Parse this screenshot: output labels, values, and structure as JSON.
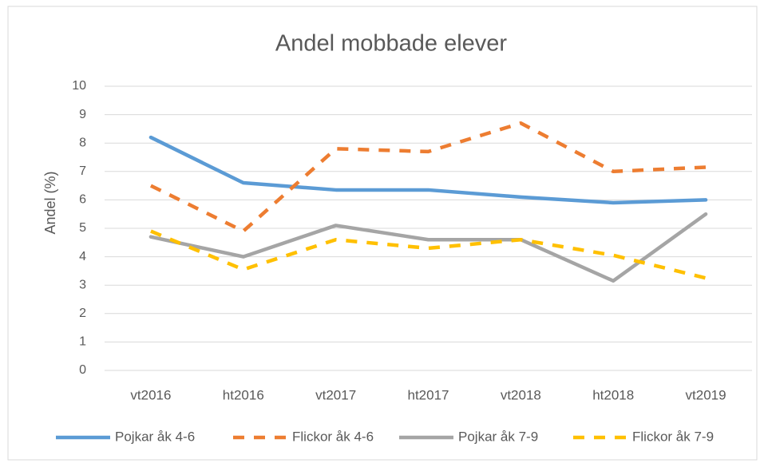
{
  "chart_data": {
    "type": "line",
    "title": "Andel mobbade elever",
    "y_label": "Andel (%)",
    "categories": [
      "vt2016",
      "ht2016",
      "vt2017",
      "ht2017",
      "vt2018",
      "ht2018",
      "vt2019"
    ],
    "series": [
      {
        "name": "Pojkar åk 4-6",
        "color": "#5b9bd5",
        "dashed": false,
        "values": [
          8.2,
          6.6,
          6.35,
          6.35,
          6.1,
          5.9,
          6.0
        ]
      },
      {
        "name": "Flickor åk 4-6",
        "color": "#ed7d31",
        "dashed": true,
        "values": [
          6.5,
          4.9,
          7.8,
          7.7,
          8.7,
          7.0,
          7.15
        ]
      },
      {
        "name": "Pojkar åk 7-9",
        "color": "#a5a5a5",
        "dashed": false,
        "values": [
          4.7,
          4.0,
          5.1,
          4.6,
          4.6,
          3.15,
          5.5
        ]
      },
      {
        "name": "Flickor åk 7-9",
        "color": "#ffc000",
        "dashed": true,
        "values": [
          4.9,
          3.55,
          4.6,
          4.3,
          4.6,
          4.05,
          3.25
        ]
      }
    ],
    "ylim": [
      0,
      10
    ],
    "yticks": [
      0,
      1,
      2,
      3,
      4,
      5,
      6,
      7,
      8,
      9,
      10
    ],
    "grid": true,
    "legend": "bottom"
  }
}
